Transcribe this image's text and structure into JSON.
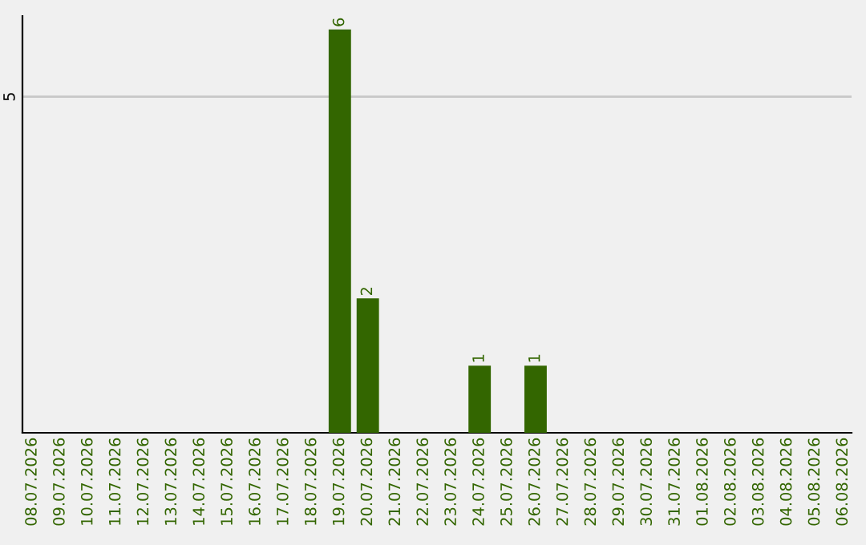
{
  "chart_data": {
    "type": "bar",
    "categories": [
      "08.07.2026",
      "09.07.2026",
      "10.07.2026",
      "11.07.2026",
      "12.07.2026",
      "13.07.2026",
      "14.07.2026",
      "15.07.2026",
      "16.07.2026",
      "17.07.2026",
      "18.07.2026",
      "19.07.2026",
      "20.07.2026",
      "21.07.2026",
      "22.07.2026",
      "23.07.2026",
      "24.07.2026",
      "25.07.2026",
      "26.07.2026",
      "27.07.2026",
      "28.07.2026",
      "29.07.2026",
      "30.07.2026",
      "31.07.2026",
      "01.08.2026",
      "02.08.2026",
      "03.08.2026",
      "04.08.2026",
      "05.08.2026",
      "06.08.2026"
    ],
    "values": [
      0,
      0,
      0,
      0,
      0,
      0,
      0,
      0,
      0,
      0,
      0,
      6,
      2,
      0,
      0,
      0,
      1,
      0,
      1,
      0,
      0,
      0,
      0,
      0,
      0,
      0,
      0,
      0,
      0,
      0
    ],
    "value_labels": [
      null,
      null,
      null,
      null,
      null,
      null,
      null,
      null,
      null,
      null,
      null,
      "6",
      "2",
      null,
      null,
      null,
      "1",
      null,
      "1",
      null,
      null,
      null,
      null,
      null,
      null,
      null,
      null,
      null,
      null,
      null
    ],
    "color": "#336600",
    "ylim": [
      0,
      6.2
    ],
    "yticks": [
      5
    ],
    "grid": "y"
  }
}
